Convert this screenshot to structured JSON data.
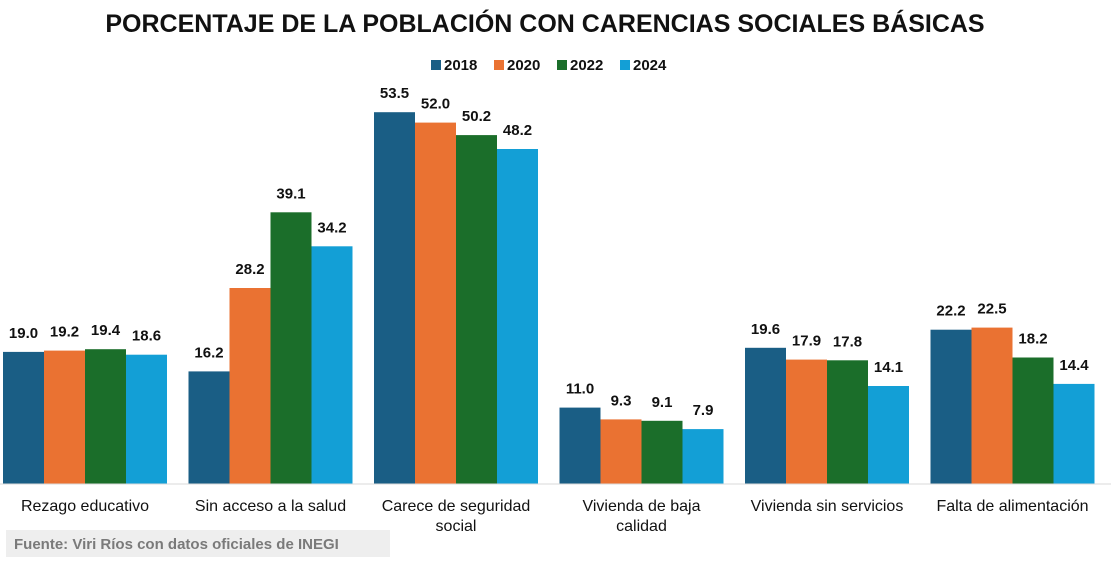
{
  "chart_data": {
    "type": "bar",
    "title": "PORCENTAJE DE LA POBLACIÓN CON CARENCIAS SOCIALES BÁSICAS",
    "categories": [
      [
        "Rezago educativo"
      ],
      [
        "Sin acceso a la salud"
      ],
      [
        "Carece de seguridad",
        "social"
      ],
      [
        "Vivienda de baja",
        "calidad"
      ],
      [
        "Vivienda sin servicios"
      ],
      [
        "Falta de alimentación"
      ]
    ],
    "series": [
      {
        "name": "2018",
        "color": "#1a5e85",
        "values": [
          19.0,
          16.2,
          53.5,
          11.0,
          19.6,
          22.2
        ]
      },
      {
        "name": "2020",
        "color": "#ea7232",
        "values": [
          19.2,
          28.2,
          52.0,
          9.3,
          17.9,
          22.5
        ]
      },
      {
        "name": "2022",
        "color": "#1b6e2a",
        "values": [
          19.4,
          39.1,
          50.2,
          9.1,
          17.8,
          18.2
        ]
      },
      {
        "name": "2024",
        "color": "#139fd6",
        "values": [
          18.6,
          34.2,
          48.2,
          7.9,
          14.1,
          14.4
        ]
      }
    ],
    "ylim": [
      0,
      60
    ],
    "grid": false,
    "legend_position": "top-center",
    "source": "Fuente: Viri Ríos con datos oficiales de INEGI"
  }
}
